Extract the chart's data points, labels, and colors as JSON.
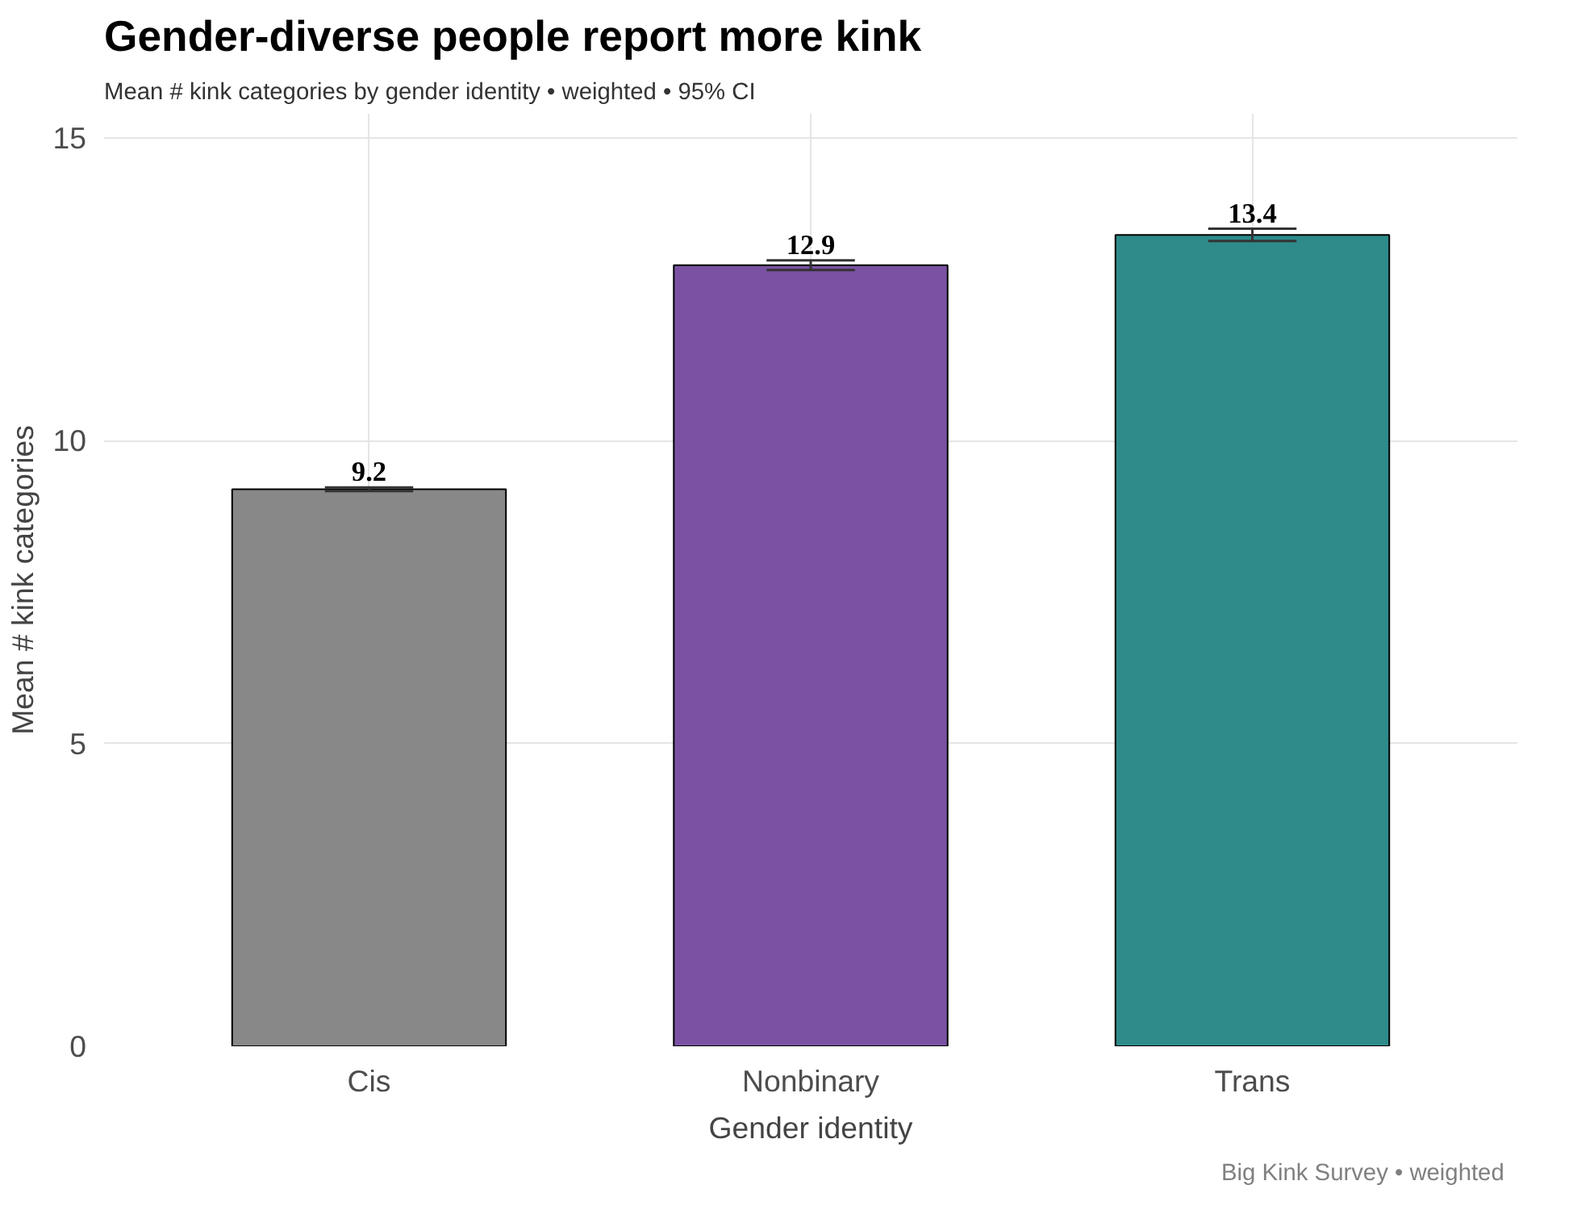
{
  "chart_data": {
    "type": "bar",
    "title": "Gender-diverse people report more kink",
    "subtitle": "Mean # kink categories by gender identity  •  weighted  •  95% CI",
    "xlabel": "Gender identity",
    "ylabel": "Mean # kink categories",
    "categories": [
      "Cis",
      "Nonbinary",
      "Trans"
    ],
    "values": [
      9.2,
      12.9,
      13.4
    ],
    "colors": [
      "#888888",
      "#7b52a3",
      "#2e8b8a"
    ],
    "errors": [
      0.03,
      0.08,
      0.1
    ],
    "ylim": [
      0,
      15.4
    ],
    "yticks": [
      0,
      5,
      10,
      15
    ],
    "grid": true,
    "data_labels": true,
    "annotations": [
      "Big Kink Survey  •  weighted"
    ]
  }
}
